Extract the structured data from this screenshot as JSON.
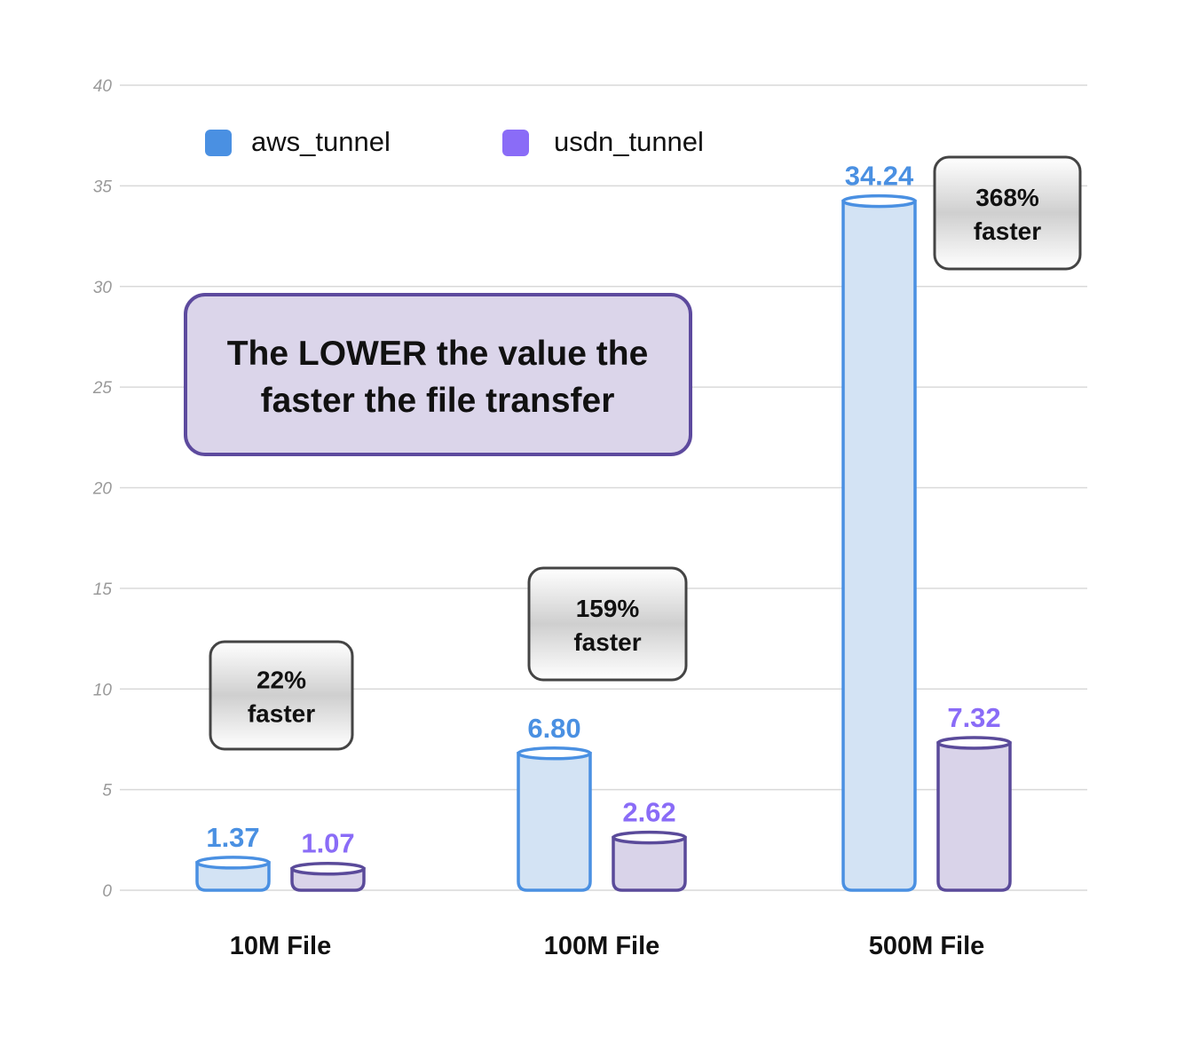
{
  "chart_data": {
    "type": "bar",
    "categories": [
      "10M File",
      "100M File",
      "500M File"
    ],
    "series": [
      {
        "name": "aws_tunnel",
        "values": [
          1.37,
          6.8,
          34.24
        ],
        "labels": [
          "1.37",
          "6.80",
          "34.24"
        ]
      },
      {
        "name": "usdn_tunnel",
        "values": [
          1.07,
          2.62,
          7.32
        ],
        "labels": [
          "1.07",
          "2.62",
          "7.32"
        ]
      }
    ],
    "ylim": [
      0,
      40
    ],
    "yticks": [
      "0",
      "5",
      "10",
      "15",
      "20",
      "25",
      "30",
      "35",
      "40"
    ],
    "grid": true,
    "legend_position": "top-left",
    "colors": {
      "aws_tunnel": {
        "fill": "#d3e3f4",
        "stroke": "#4a90e2",
        "label": "#4a90e2",
        "legend": "#4a90e2"
      },
      "usdn_tunnel": {
        "fill": "#d9d3e9",
        "stroke": "#5a4a9a",
        "label": "#8a6cf7",
        "legend": "#8a6cf7"
      }
    },
    "callouts": [
      {
        "category": "10M File",
        "lines": [
          "22%",
          "faster"
        ]
      },
      {
        "category": "100M File",
        "lines": [
          "159%",
          "faster"
        ]
      },
      {
        "category": "500M File",
        "lines": [
          "368%",
          "faster"
        ]
      }
    ],
    "note": {
      "lines": [
        "The LOWER the value the",
        "faster the file transfer"
      ],
      "fill": "#dbd5ea",
      "stroke": "#5d4a9e"
    }
  }
}
